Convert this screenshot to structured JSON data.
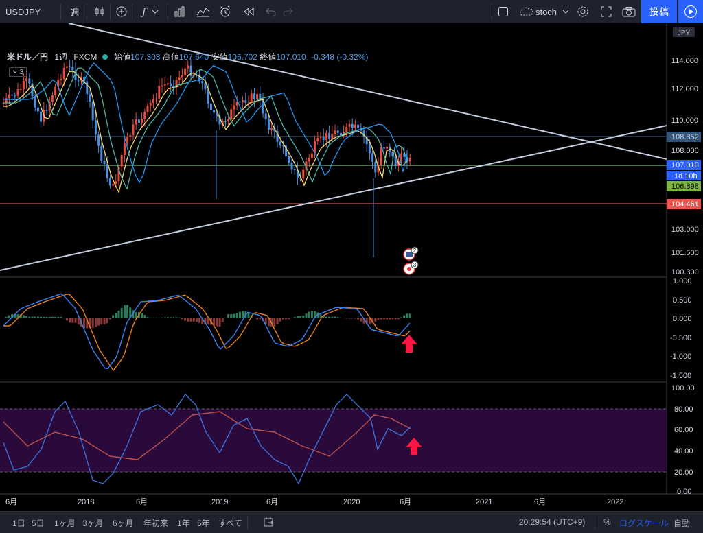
{
  "toolbar": {
    "symbol": "USDJPY",
    "interval": "週",
    "indicator_name": "stoch",
    "post_label": "投稿"
  },
  "legend": {
    "title": "米ドル／円",
    "interval": "1週",
    "source": "FXCM",
    "open_label": "始値",
    "open": "107.303",
    "high_label": "高値",
    "high": "107.640",
    "low_label": "安値",
    "low": "106.702",
    "close_label": "終値",
    "close": "107.010",
    "change": "-0.348 (-0.32%)",
    "collapsed_count": "3"
  },
  "price_axis": {
    "currency": "JPY",
    "ticks": [
      "114.000",
      "112.000",
      "110.000",
      "108.000",
      "103.000",
      "101.500",
      "100.300"
    ],
    "markers": [
      {
        "label": "108.852",
        "bg": "#34567a",
        "fg": "#d1d4dc"
      },
      {
        "label": "107.010",
        "bg": "#2962ff",
        "fg": "#ffffff"
      },
      {
        "label": "1d 10h",
        "bg": "#2962ff",
        "fg": "#ffffff"
      },
      {
        "label": "106.898",
        "bg": "#7cb342",
        "fg": "#000000"
      },
      {
        "label": "104.461",
        "bg": "#ef5350",
        "fg": "#ffffff"
      }
    ]
  },
  "macd_axis": {
    "ticks": [
      "1.000",
      "0.500",
      "0.000",
      "-0.500",
      "-1.000",
      "-1.500"
    ]
  },
  "stoch_axis": {
    "ticks": [
      "100.00",
      "80.00",
      "60.00",
      "40.00",
      "20.00",
      "0.00"
    ]
  },
  "time_axis": {
    "labels": [
      "6月",
      "2018",
      "6月",
      "2019",
      "6月",
      "2020",
      "6月",
      "2021",
      "6月",
      "2022"
    ]
  },
  "event_badges": [
    "2",
    "3"
  ],
  "bottom": {
    "ranges": [
      "1日",
      "5日",
      "1ヶ月",
      "3ヶ月",
      "6ヶ月",
      "年初来",
      "1年",
      "5年",
      "すべて"
    ],
    "time": "20:29:54 (UTC+9)",
    "percent": "%",
    "log_scale": "ログスケール",
    "auto": "自動"
  },
  "colors": {
    "up": "#e74c3c",
    "down": "#4a90e2",
    "ma_yellow": "#f5d76e",
    "ma_green": "#4db6ac",
    "ma_blue": "#2196f3",
    "macd_line": "#3b82f6",
    "signal_line": "#e67e22",
    "stoch_k": "#3b6fd6",
    "stoch_d": "#c0504d",
    "stoch_band": "#2a0a3a",
    "arrow": "#ff1744",
    "accent": "#2962ff"
  }
}
